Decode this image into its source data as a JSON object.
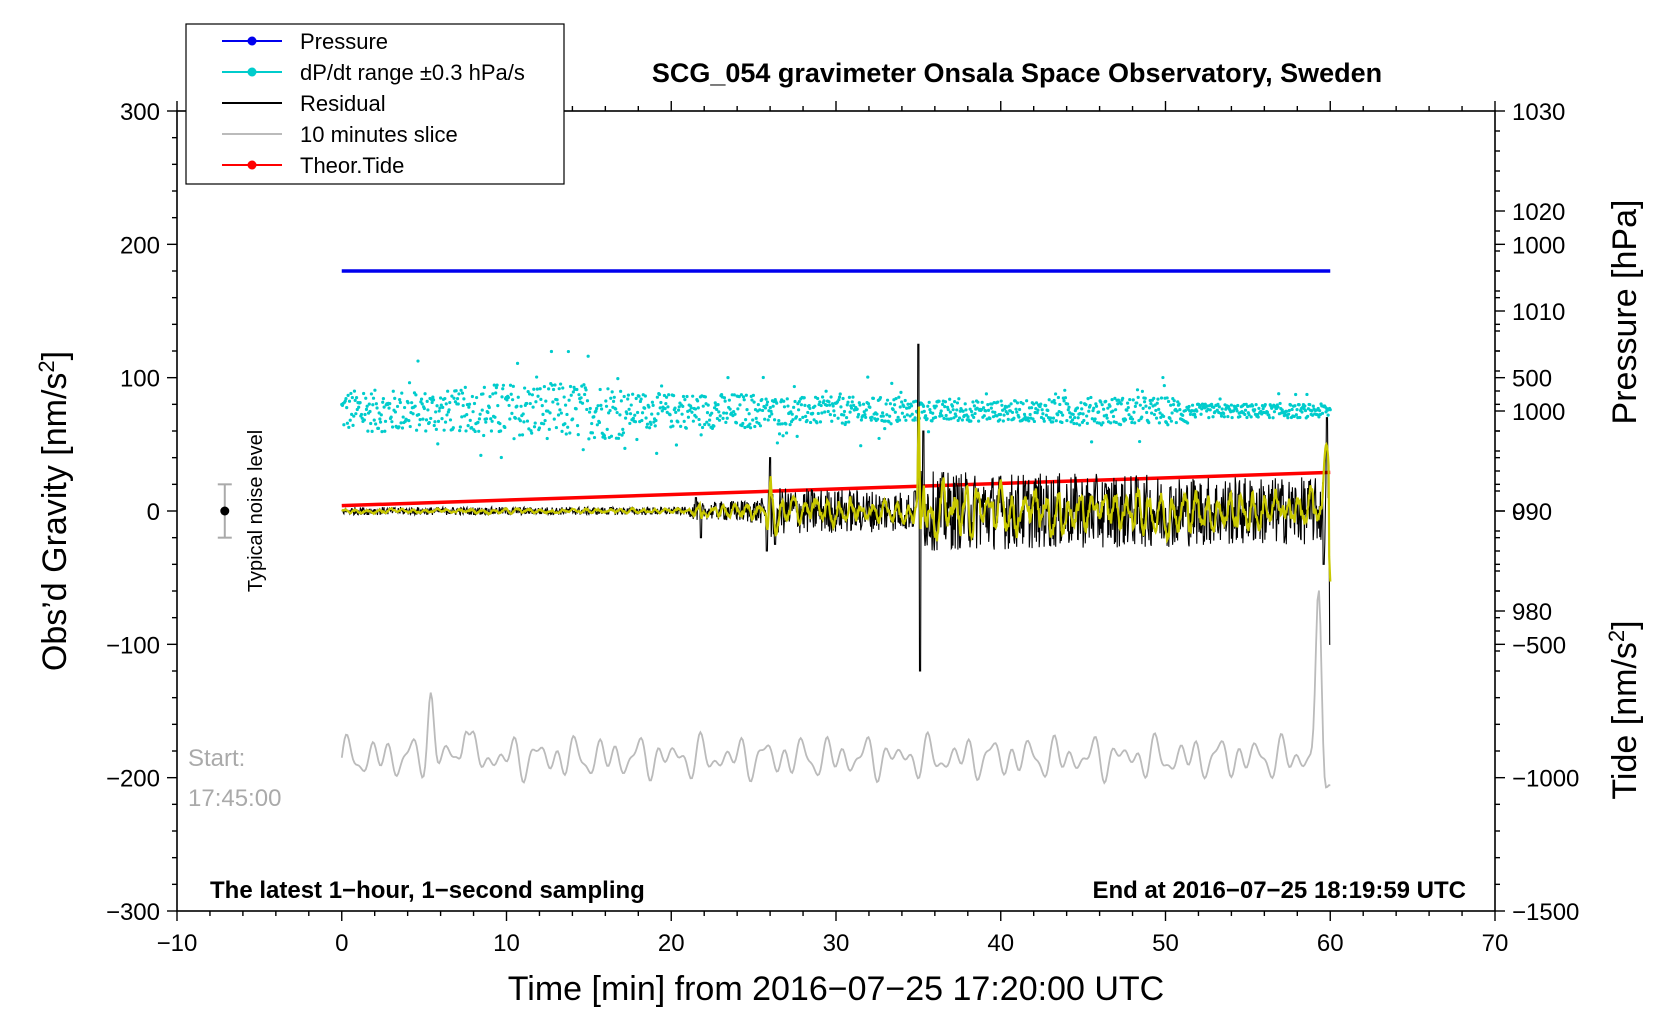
{
  "chart_data": {
    "type": "line",
    "title": "SCG_054 gravimeter Onsala Space Observatory, Sweden",
    "xlabel": "Time [min] from 2016−07−25 17:20:00 UTC",
    "ylabel": "Obs’d Gravity [nm/s",
    "ylabel_sup": "2",
    "ylabel_close": "]",
    "xlim": [
      -10,
      70
    ],
    "ylim": [
      -300,
      300
    ],
    "x_ticks": [
      -10,
      0,
      10,
      20,
      30,
      40,
      50,
      60,
      70
    ],
    "x_tick_labels": [
      "−10",
      "0",
      "10",
      "20",
      "30",
      "40",
      "50",
      "60",
      "70"
    ],
    "y_ticks": [
      -300,
      -200,
      -100,
      0,
      100,
      200,
      300
    ],
    "y_tick_labels": [
      "−300",
      "−200",
      "−100",
      "0",
      "100",
      "200",
      "300"
    ],
    "right_axes": {
      "pressure": {
        "label": "Pressure [hPa]",
        "ticks": [
          980,
          990,
          1000,
          1010,
          1020,
          1030
        ],
        "tick_labels": [
          "980",
          "990",
          "1000",
          "1010",
          "1020",
          "1030"
        ],
        "range": [
          950,
          1030
        ]
      },
      "tide": {
        "label": "Tide [nm/s",
        "label_sup": "2",
        "label_close": "]",
        "ticks": [
          -1500,
          -1000,
          -500,
          0,
          500,
          1000
        ],
        "tick_labels": [
          "−1500",
          "−1000",
          "−500",
          "0",
          "500",
          "1000"
        ],
        "range": [
          -1500,
          1500
        ]
      }
    },
    "legend": {
      "placement": "top-left",
      "entries": [
        {
          "label": "Pressure",
          "color": "#0000ee",
          "marker": true
        },
        {
          "label": "dP/dt range ±0.3 hPa/s",
          "color": "#00cccc",
          "marker": true
        },
        {
          "label": "Residual",
          "color": "#000000",
          "marker": false
        },
        {
          "label": "10 minutes slice",
          "color": "#bbbbbb",
          "marker": false
        },
        {
          "label": "Theor.Tide",
          "color": "#ff0000",
          "marker": true
        }
      ]
    },
    "series": [
      {
        "name": "Pressure",
        "axis": "pressure",
        "color": "#0000ee",
        "x": [
          0,
          60
        ],
        "values": [
          1014,
          1014
        ]
      },
      {
        "name": "dP/dt range ±0.3 hPa/s",
        "axis": "pressure",
        "color": "#00cccc",
        "x": [
          0,
          60
        ],
        "values": [
          1000,
          1000
        ],
        "scatter_spread": [
          6,
          8,
          5,
          4,
          3,
          4,
          2
        ]
      },
      {
        "name": "Residual",
        "axis": "gravity",
        "color": "#000000",
        "x": [
          0,
          21,
          21.5,
          21.8,
          25.8,
          26.0,
          26.3,
          34.8,
          35.0,
          35.1,
          35.3,
          59.6,
          59.8,
          60
        ],
        "values": [
          0,
          0,
          10,
          -20,
          -30,
          40,
          -25,
          15,
          125,
          -120,
          60,
          -40,
          70,
          -100
        ],
        "envelope": [
          3,
          3,
          8,
          6,
          10,
          25,
          18,
          15,
          45,
          40,
          30,
          25,
          30,
          40
        ]
      },
      {
        "name": "Smoothed residual",
        "axis": "gravity",
        "color": "#c8c800",
        "x": [
          0,
          60
        ],
        "values": [
          0,
          0
        ]
      },
      {
        "name": "10 minutes slice",
        "axis": "gravity",
        "color": "#bbbbbb",
        "x": [
          0,
          60
        ],
        "values": [
          -185,
          -185
        ],
        "peaks": [
          {
            "x": 5.4,
            "y": -143
          },
          {
            "x": 7.5,
            "y": -152
          },
          {
            "x": 59.3,
            "y": -55
          },
          {
            "x": 59.6,
            "y": -230
          }
        ]
      },
      {
        "name": "Theor.Tide",
        "axis": "tide",
        "color": "#ff0000",
        "x": [
          0,
          60
        ],
        "values": [
          20,
          145
        ]
      }
    ],
    "noise_level": {
      "x": -7.1,
      "center": 0,
      "half_range": 20,
      "label": "Typical noise level"
    },
    "annotations": {
      "start_label_1": "Start:",
      "start_label_2": "17:45:00",
      "bottom_left": "The latest 1−hour, 1−second sampling",
      "bottom_right": "End at 2016−07−25 18:19:59 UTC"
    }
  }
}
